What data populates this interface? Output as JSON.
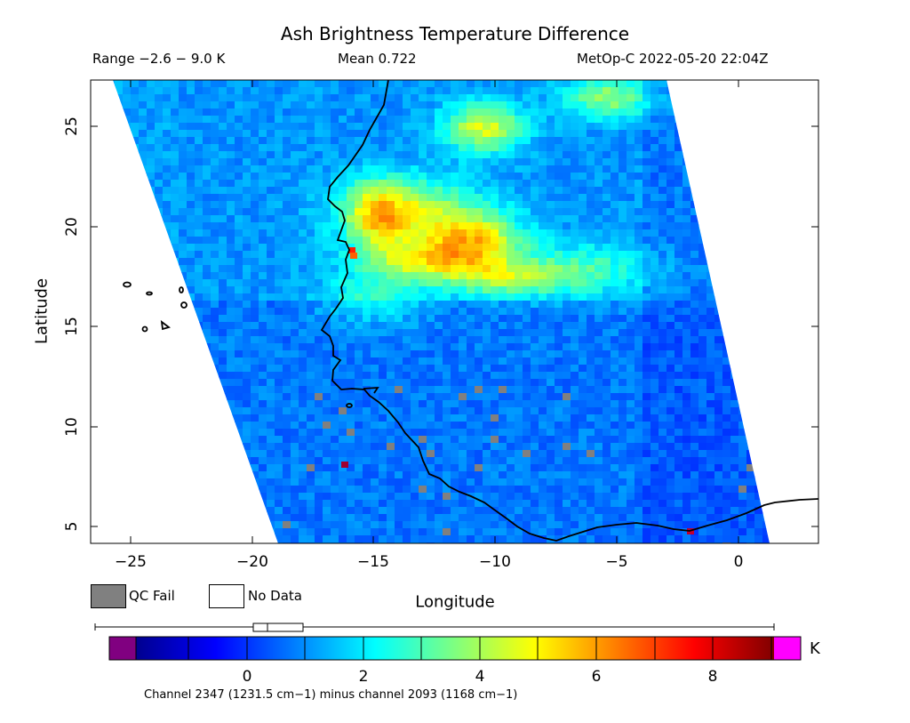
{
  "header": {
    "title": "Ash Brightness Temperature Difference",
    "range": "Range −2.6 − 9.0 K",
    "mean": "Mean 0.722",
    "satellite": "MetOp-C 2022-05-20 22:04Z"
  },
  "axes": {
    "xlabel": "Longitude",
    "ylabel": "Latitude",
    "xticks": [
      "−25",
      "−20",
      "−15",
      "−10",
      "−5",
      "0"
    ],
    "yticks": [
      "25",
      "20",
      "15",
      "10",
      "5"
    ]
  },
  "legend": {
    "qc_fail": "QC Fail",
    "no_data": "No Data",
    "qc_color": "#808080",
    "no_data_color": "#ffffff"
  },
  "colorbar": {
    "unit": "K",
    "ticks": [
      "0",
      "2",
      "4",
      "6",
      "8"
    ],
    "under_color": "#800080",
    "over_color": "#ff00ff",
    "range": [
      -2.6,
      9.0
    ],
    "footnote": "Channel 2347 (1231.5 cm−1) minus channel 2093 (1168 cm−1)"
  },
  "map": {
    "extent_lon": [
      -26.5,
      3.2
    ],
    "extent_lat": [
      4.2,
      27.2
    ],
    "palette": "jet",
    "coastline_color": "#000000"
  }
}
